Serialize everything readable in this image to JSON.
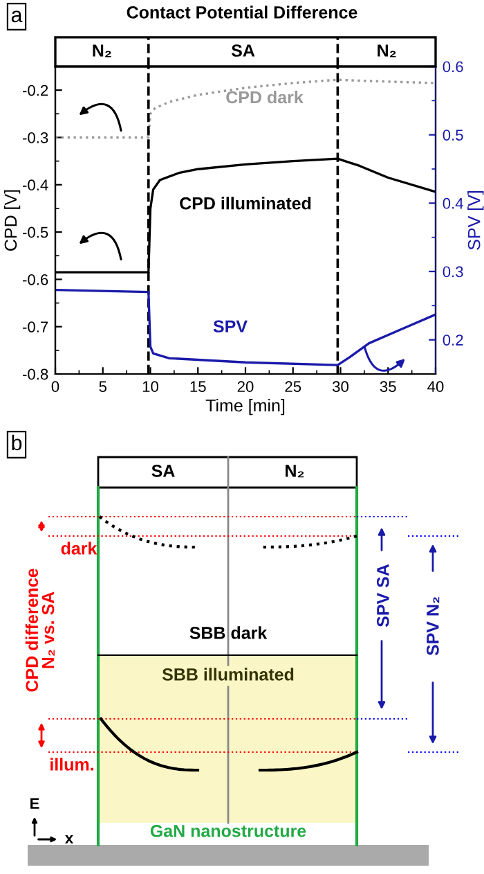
{
  "chart_data": [
    {
      "type": "line",
      "title": "Contact Potential Difference",
      "xlabel": "Time [min]",
      "ylabel": "CPD [V]",
      "y2label": "SPV [V]",
      "annotations": [
        "a",
        "N₂",
        "SA",
        "N₂"
      ],
      "series": [
        {
          "name": "CPD dark",
          "color": "#999999",
          "line_style": "dotted",
          "x": [
            0,
            9.8,
            10,
            10.5,
            12,
            15,
            20,
            25,
            29.7,
            32,
            35,
            40
          ],
          "values": [
            -0.3,
            -0.3,
            -0.25,
            -0.238,
            -0.225,
            -0.21,
            -0.195,
            -0.185,
            -0.178,
            -0.18,
            -0.182,
            -0.185
          ]
        },
        {
          "name": "CPD illuminated",
          "color": "#000000",
          "line_style": "solid",
          "x": [
            0,
            9.8,
            10,
            10.3,
            11,
            13,
            15,
            20,
            25,
            29.7,
            32,
            35,
            40
          ],
          "values": [
            -0.585,
            -0.585,
            -0.45,
            -0.41,
            -0.39,
            -0.375,
            -0.367,
            -0.357,
            -0.35,
            -0.345,
            -0.36,
            -0.385,
            -0.415
          ]
        },
        {
          "name": "SPV",
          "color": "#1a1aaa",
          "line_style": "solid",
          "axis": "y2",
          "x": [
            0,
            9.8,
            10,
            10.3,
            12,
            20,
            29.7,
            31,
            33,
            36,
            40
          ],
          "values": [
            0.273,
            0.27,
            0.19,
            0.18,
            0.173,
            0.167,
            0.163,
            0.175,
            0.195,
            0.213,
            0.237
          ]
        }
      ],
      "xlim": [
        0,
        40
      ],
      "xticks": [
        0,
        5,
        10,
        15,
        20,
        25,
        30,
        35,
        40
      ],
      "ylim": [
        -0.8,
        -0.15
      ],
      "yticks": [
        -0.8,
        -0.7,
        -0.6,
        -0.5,
        -0.4,
        -0.3,
        -0.2
      ],
      "y2lim": [
        0.15,
        0.6
      ],
      "y2ticks": [
        0.2,
        0.3,
        0.4,
        0.5,
        0.6
      ],
      "ref_lines": [
        {
          "axis": "x",
          "value": 9.8,
          "color": "#000000",
          "line_style": "dashed"
        },
        {
          "axis": "x",
          "value": 29.7,
          "color": "#000000",
          "line_style": "dashed"
        }
      ],
      "grid": false
    },
    {
      "type": "other",
      "annotations": [
        "b",
        "SA",
        "N₂",
        "dark",
        "illum.",
        "CPD difference\nN₂ vs. SA",
        "SBB dark",
        "SBB illuminated",
        "SPV SA",
        "SPV N₂",
        "E",
        "x",
        "GaN nanostructure"
      ]
    }
  ]
}
